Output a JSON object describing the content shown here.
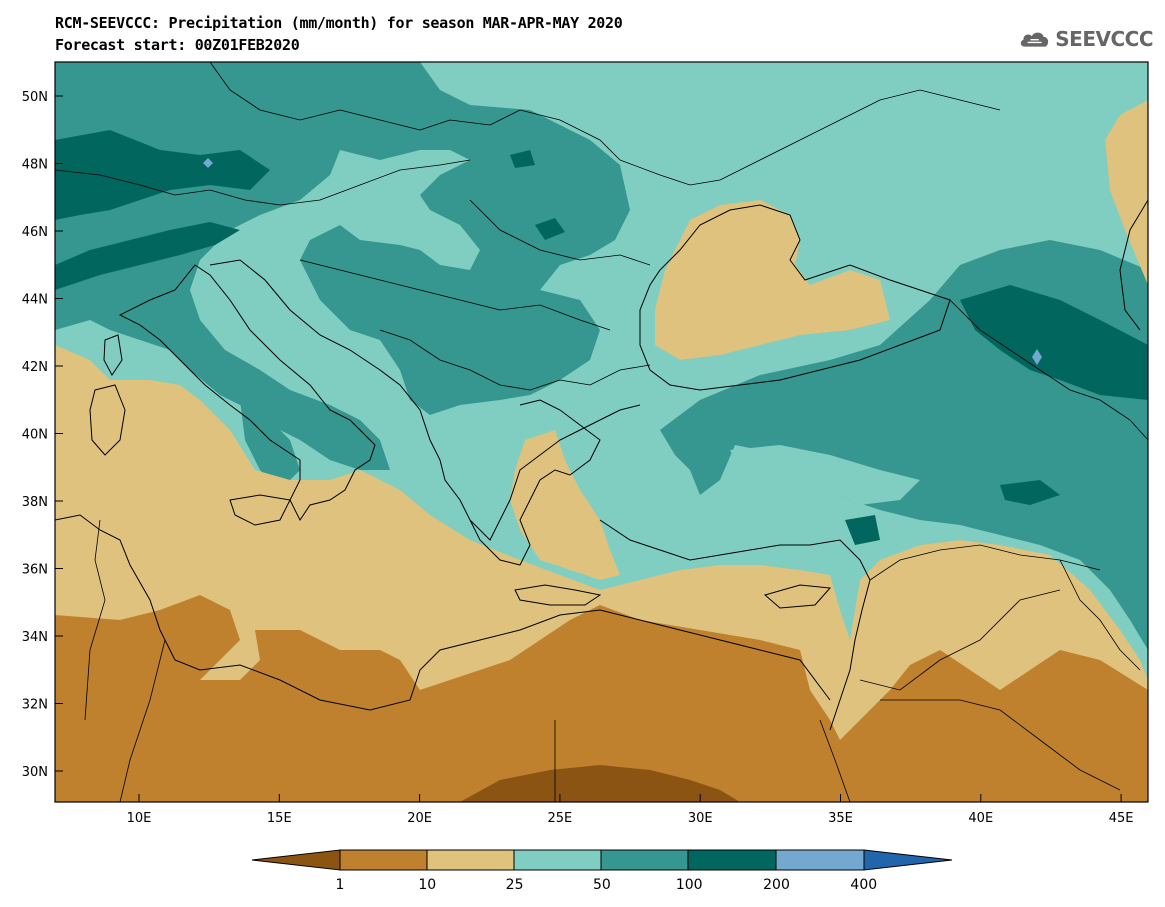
{
  "header": {
    "title": "RCM-SEEVCCC: Precipitation (mm/month) for season MAR-APR-MAY 2020",
    "subtitle": "Forecast start: 00Z01FEB2020",
    "logo_text": "SEEVCCC"
  },
  "map": {
    "lat_labels": [
      "50N",
      "48N",
      "46N",
      "44N",
      "42N",
      "40N",
      "38N",
      "36N",
      "34N",
      "32N",
      "30N"
    ],
    "lon_labels": [
      "10E",
      "15E",
      "20E",
      "25E",
      "30E",
      "35E",
      "40E",
      "45E"
    ],
    "colors": {
      "dark_brown": "#8b5413",
      "brown": "#bf812d",
      "tan": "#dfc27d",
      "light_teal": "#80cdc1",
      "teal": "#35978f",
      "dark_teal": "#01665e",
      "light_blue": "#74a9cf",
      "blue": "#2166ac"
    }
  },
  "legend": {
    "labels": [
      "1",
      "10",
      "25",
      "50",
      "100",
      "200",
      "400"
    ]
  }
}
